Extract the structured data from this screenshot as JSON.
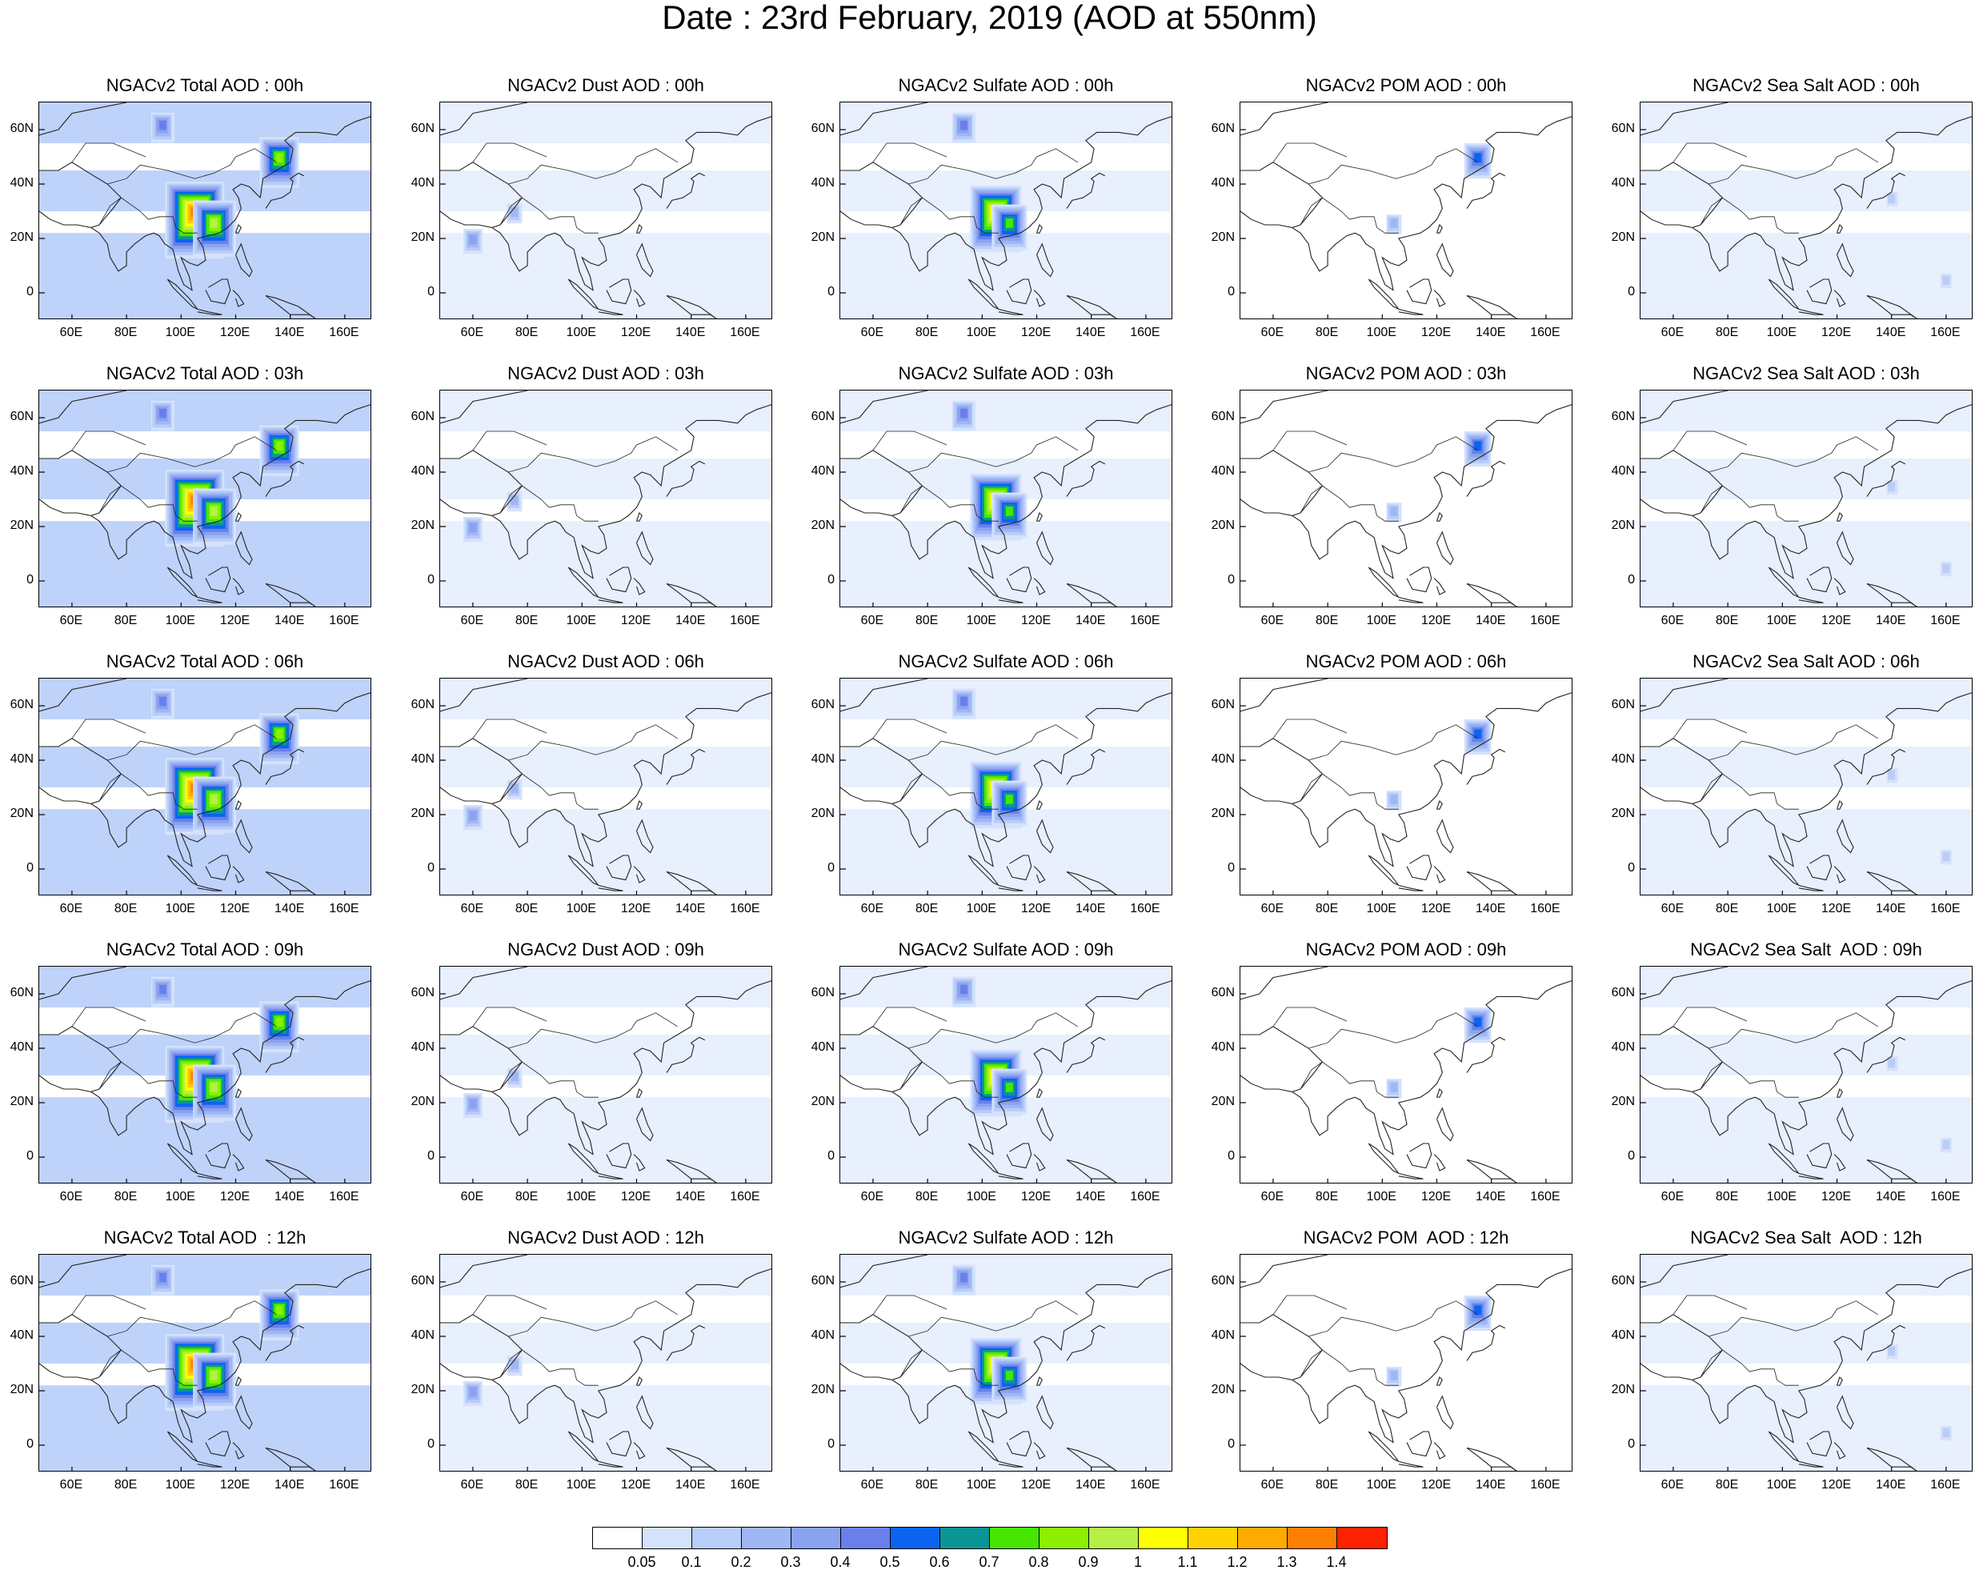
{
  "title": "Date : 23rd February, 2019 (AOD at 550nm)",
  "chart_data": {
    "type": "heatmap",
    "description_grid": "5 rows (forecast hours) x 5 columns (aerosol species) of lat-lon maps over Asia",
    "lon_ticks": [
      "60E",
      "80E",
      "100E",
      "120E",
      "140E",
      "160E"
    ],
    "lat_ticks": [
      "60N",
      "40N",
      "20N",
      "0"
    ],
    "lon_values": [
      60,
      80,
      100,
      120,
      140,
      160
    ],
    "lat_values": [
      60,
      40,
      20,
      0
    ],
    "xlim": [
      48,
      170
    ],
    "ylim": [
      -10,
      70
    ],
    "colorbar": {
      "levels": [
        "0.05",
        "0.1",
        "0.2",
        "0.3",
        "0.4",
        "0.5",
        "0.6",
        "0.7",
        "0.8",
        "0.9",
        "1",
        "1.1",
        "1.2",
        "1.3",
        "1.4"
      ],
      "colors": [
        "#ffffff",
        "#d5e2fb",
        "#b8cdf8",
        "#9fb7f4",
        "#8aa3f0",
        "#6a7fea",
        "#0a64f0",
        "#0a9696",
        "#46e600",
        "#8cf000",
        "#b4f046",
        "#ffff00",
        "#ffd200",
        "#ffaa00",
        "#ff7f00",
        "#ff2200"
      ]
    },
    "panels": [
      {
        "title": "NGACv2 Total AOD : 00h"
      },
      {
        "title": "NGACv2 Dust AOD : 00h"
      },
      {
        "title": "NGACv2 Sulfate AOD : 00h"
      },
      {
        "title": "NGACv2 POM AOD : 00h"
      },
      {
        "title": "NGACv2 Sea Salt AOD : 00h"
      },
      {
        "title": "NGACv2 Total AOD : 03h"
      },
      {
        "title": "NGACv2 Dust AOD : 03h"
      },
      {
        "title": "NGACv2 Sulfate AOD : 03h"
      },
      {
        "title": "NGACv2 POM AOD : 03h"
      },
      {
        "title": "NGACv2 Sea Salt AOD : 03h"
      },
      {
        "title": "NGACv2 Total AOD : 06h"
      },
      {
        "title": "NGACv2 Dust AOD : 06h"
      },
      {
        "title": "NGACv2 Sulfate AOD : 06h"
      },
      {
        "title": "NGACv2 POM AOD : 06h"
      },
      {
        "title": "NGACv2 Sea Salt AOD : 06h"
      },
      {
        "title": "NGACv2 Total AOD : 09h"
      },
      {
        "title": "NGACv2 Dust AOD : 09h"
      },
      {
        "title": "NGACv2 Sulfate AOD : 09h"
      },
      {
        "title": "NGACv2 POM AOD : 09h"
      },
      {
        "title": "NGACv2 Sea Salt  AOD : 09h"
      },
      {
        "title": "NGACv2 Total AOD  : 12h"
      },
      {
        "title": "NGACv2 Dust AOD : 12h"
      },
      {
        "title": "NGACv2 Sulfate AOD : 12h"
      },
      {
        "title": "NGACv2 POM  AOD : 12h"
      },
      {
        "title": "NGACv2 Sea Salt  AOD : 12h"
      }
    ],
    "species_patterns": [
      {
        "species": "Total",
        "background_level": 2,
        "hotspots": [
          [
            105,
            30,
            14
          ],
          [
            112,
            26,
            10
          ],
          [
            136,
            50,
            9
          ],
          [
            93,
            62,
            5
          ]
        ]
      },
      {
        "species": "Dust",
        "background_level": 1,
        "hotspots": [
          [
            60,
            20,
            4
          ],
          [
            75,
            30,
            3
          ]
        ]
      },
      {
        "species": "Sulfate",
        "background_level": 1,
        "hotspots": [
          [
            105,
            30,
            12
          ],
          [
            93,
            62,
            5
          ],
          [
            110,
            26,
            8
          ]
        ]
      },
      {
        "species": "POM",
        "background_level": 0,
        "hotspots": [
          [
            135,
            50,
            6
          ],
          [
            104,
            26,
            3
          ]
        ]
      },
      {
        "species": "Sea Salt",
        "background_level": 1,
        "hotspots": [
          [
            160,
            5,
            2
          ],
          [
            140,
            35,
            2
          ]
        ]
      }
    ]
  }
}
